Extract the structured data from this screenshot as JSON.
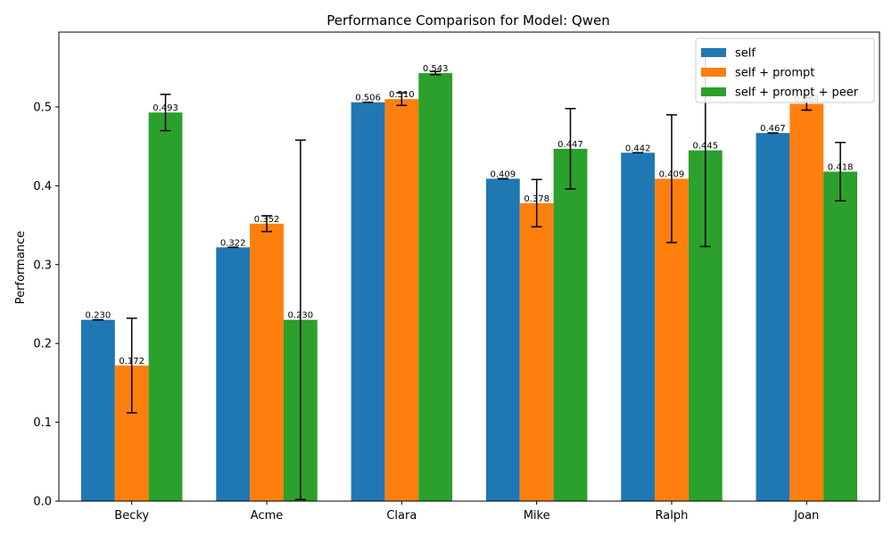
{
  "chart_data": {
    "type": "bar",
    "title": "Performance Comparison for Model: Qwen",
    "xlabel": "",
    "ylabel": "Performance",
    "categories": [
      "Becky",
      "Acme",
      "Clara",
      "Mike",
      "Ralph",
      "Joan"
    ],
    "ylim": [
      0,
      0.595
    ],
    "yticks": [
      0.0,
      0.1,
      0.2,
      0.3,
      0.4,
      0.5
    ],
    "ytick_labels": [
      "0.0",
      "0.1",
      "0.2",
      "0.3",
      "0.4",
      "0.5"
    ],
    "grid": false,
    "legend_position": "top-right",
    "series": [
      {
        "name": "self",
        "color": "#1f77b4",
        "values": [
          0.23,
          0.322,
          0.506,
          0.409,
          0.442,
          0.467
        ],
        "labels": [
          "0.230",
          "0.322",
          "0.506",
          "0.409",
          "0.442",
          "0.467"
        ],
        "errors": [
          0,
          0,
          0,
          0,
          0,
          0
        ]
      },
      {
        "name": "self + prompt",
        "color": "#ff7f0e",
        "values": [
          0.172,
          0.352,
          0.51,
          0.378,
          0.409,
          0.504
        ],
        "labels": [
          "0.172",
          "0.352",
          "0.510",
          "0.378",
          "0.409",
          "0.504"
        ],
        "errors": [
          0.06,
          0.01,
          0.008,
          0.03,
          0.081,
          0.008
        ]
      },
      {
        "name": "self + prompt + peer",
        "color": "#2ca02c",
        "values": [
          0.493,
          0.23,
          0.543,
          0.447,
          0.445,
          0.418
        ],
        "labels": [
          "0.493",
          "0.230",
          "0.543",
          "0.447",
          "0.445",
          "0.418"
        ],
        "errors": [
          0.023,
          0.228,
          0.002,
          0.051,
          0.122,
          0.037
        ]
      }
    ]
  }
}
